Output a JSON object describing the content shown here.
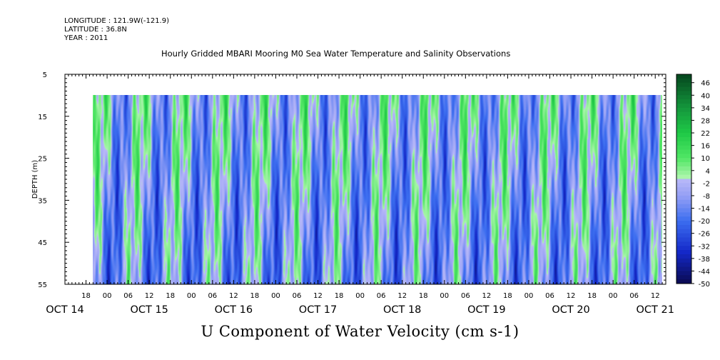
{
  "header": {
    "longitude": "LONGITUDE : 121.9W(-121.9)",
    "latitude": "LATITUDE : 36.8N",
    "year": "YEAR : 2011",
    "plot_title": "Hourly Gridded MBARI Mooring M0 Sea Water Temperature and Salinity Observations"
  },
  "chart_data": {
    "type": "heatmap",
    "title": "U Component of Water Velocity (cm s-1)",
    "ylabel": "DEPTH (m)",
    "xlabel": "",
    "y_axis": {
      "range": [
        5,
        55
      ],
      "inverted": true,
      "ticks": [
        5,
        15,
        25,
        35,
        45,
        55
      ]
    },
    "x_axis": {
      "range": [
        "2011-10-14T12:00",
        "2011-10-21T15:00"
      ],
      "hour_ticks": [
        {
          "t": "2011-10-14T18:00",
          "label": "18"
        },
        {
          "t": "2011-10-15T00:00",
          "label": "00"
        },
        {
          "t": "2011-10-15T06:00",
          "label": "06"
        },
        {
          "t": "2011-10-15T12:00",
          "label": "12"
        },
        {
          "t": "2011-10-15T18:00",
          "label": "18"
        },
        {
          "t": "2011-10-16T00:00",
          "label": "00"
        },
        {
          "t": "2011-10-16T06:00",
          "label": "06"
        },
        {
          "t": "2011-10-16T12:00",
          "label": "12"
        },
        {
          "t": "2011-10-16T18:00",
          "label": "18"
        },
        {
          "t": "2011-10-17T00:00",
          "label": "00"
        },
        {
          "t": "2011-10-17T06:00",
          "label": "06"
        },
        {
          "t": "2011-10-17T12:00",
          "label": "12"
        },
        {
          "t": "2011-10-17T18:00",
          "label": "18"
        },
        {
          "t": "2011-10-18T00:00",
          "label": "00"
        },
        {
          "t": "2011-10-18T06:00",
          "label": "06"
        },
        {
          "t": "2011-10-18T12:00",
          "label": "12"
        },
        {
          "t": "2011-10-18T18:00",
          "label": "18"
        },
        {
          "t": "2011-10-19T00:00",
          "label": "00"
        },
        {
          "t": "2011-10-19T06:00",
          "label": "06"
        },
        {
          "t": "2011-10-19T12:00",
          "label": "12"
        },
        {
          "t": "2011-10-19T18:00",
          "label": "18"
        },
        {
          "t": "2011-10-20T00:00",
          "label": "00"
        },
        {
          "t": "2011-10-20T06:00",
          "label": "06"
        },
        {
          "t": "2011-10-20T12:00",
          "label": "12"
        },
        {
          "t": "2011-10-20T18:00",
          "label": "18"
        },
        {
          "t": "2011-10-21T00:00",
          "label": "00"
        },
        {
          "t": "2011-10-21T06:00",
          "label": "06"
        },
        {
          "t": "2011-10-21T12:00",
          "label": "12"
        }
      ],
      "date_labels": [
        {
          "t": "2011-10-14T12:00",
          "label": "OCT 14"
        },
        {
          "t": "2011-10-15T12:00",
          "label": "OCT 15"
        },
        {
          "t": "2011-10-16T12:00",
          "label": "OCT 16"
        },
        {
          "t": "2011-10-17T12:00",
          "label": "OCT 17"
        },
        {
          "t": "2011-10-18T12:00",
          "label": "OCT 18"
        },
        {
          "t": "2011-10-19T12:00",
          "label": "OCT 19"
        },
        {
          "t": "2011-10-20T12:00",
          "label": "OCT 20"
        },
        {
          "t": "2011-10-21T12:00",
          "label": "OCT 21"
        }
      ]
    },
    "data_extent": {
      "time": [
        "2011-10-14T20:00",
        "2011-10-21T14:00"
      ],
      "depth": [
        10,
        55
      ]
    },
    "colorbar": {
      "range": [
        -50,
        50
      ],
      "step": 2,
      "labels": [
        46,
        40,
        34,
        28,
        22,
        16,
        10,
        4,
        -2,
        -8,
        -14,
        -20,
        -26,
        -32,
        -38,
        -44,
        -50
      ]
    },
    "grid": false,
    "legend_position": "right",
    "colors": {
      "positive_light": "#a8f2a8",
      "positive_mid": "#40e040",
      "positive_max": "#0a5a1e",
      "negative_light": "#b4b4f6",
      "negative_mid": "#5070f0",
      "negative_max": "#101070"
    }
  }
}
